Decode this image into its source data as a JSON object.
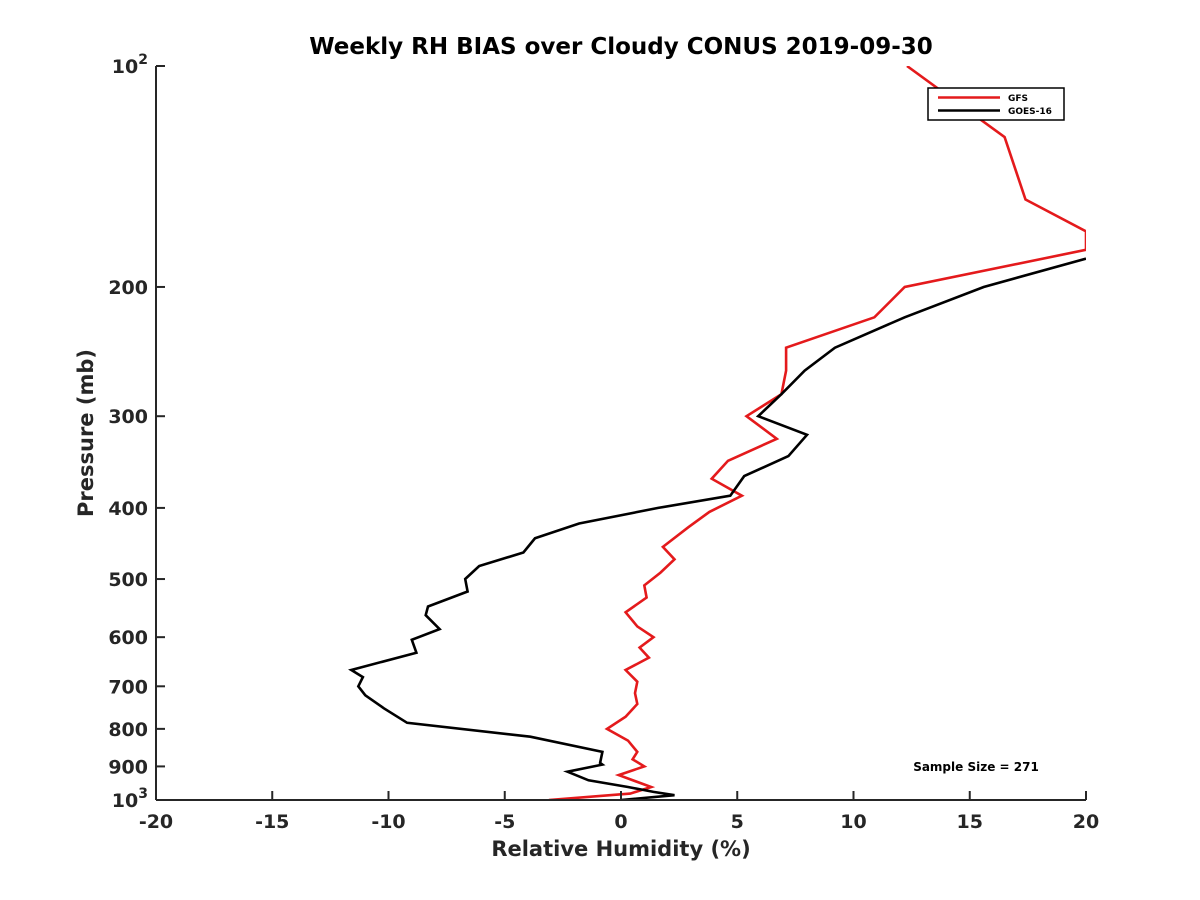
{
  "chart_data": {
    "type": "line",
    "title": "Weekly RH BIAS over Cloudy CONUS 2019-09-30",
    "xlabel": "Relative Humidity (%)",
    "ylabel": "Pressure (mb)",
    "xlim": [
      -20,
      20
    ],
    "ylim": [
      100,
      1000
    ],
    "y_scale": "log",
    "y_reversed": true,
    "grid": false,
    "legend_position": "top-right",
    "x_ticks": [
      "-20",
      "-15",
      "-10",
      "-5",
      "0",
      "5",
      "10",
      "15",
      "20"
    ],
    "y_ticks": [
      {
        "value": 100,
        "base": "10",
        "exp": "2"
      },
      {
        "value": 200,
        "label": "200"
      },
      {
        "value": 300,
        "label": "300"
      },
      {
        "value": 400,
        "label": "400"
      },
      {
        "value": 500,
        "label": "500"
      },
      {
        "value": 600,
        "label": "600"
      },
      {
        "value": 700,
        "label": "700"
      },
      {
        "value": 800,
        "label": "800"
      },
      {
        "value": 900,
        "label": "900"
      },
      {
        "value": 1000,
        "base": "10",
        "exp": "3"
      }
    ],
    "annotation": "Sample Size = 271",
    "series": [
      {
        "name": "GFS",
        "color": "#e41a1c",
        "points": [
          [
            12.3,
            100
          ],
          [
            16.5,
            125
          ],
          [
            17.4,
            152
          ],
          [
            20.0,
            168
          ],
          [
            20.0,
            178
          ],
          [
            12.2,
            200
          ],
          [
            10.9,
            220
          ],
          [
            7.1,
            242
          ],
          [
            7.1,
            260
          ],
          [
            6.9,
            280
          ],
          [
            5.4,
            300
          ],
          [
            6.7,
            322
          ],
          [
            4.6,
            345
          ],
          [
            3.9,
            365
          ],
          [
            5.2,
            385
          ],
          [
            3.8,
            405
          ],
          [
            2.9,
            425
          ],
          [
            1.8,
            452
          ],
          [
            2.3,
            470
          ],
          [
            1.7,
            490
          ],
          [
            1.0,
            510
          ],
          [
            1.1,
            530
          ],
          [
            0.2,
            555
          ],
          [
            0.7,
            580
          ],
          [
            1.4,
            600
          ],
          [
            0.8,
            620
          ],
          [
            1.2,
            640
          ],
          [
            0.2,
            665
          ],
          [
            0.7,
            690
          ],
          [
            0.6,
            715
          ],
          [
            0.7,
            740
          ],
          [
            0.2,
            770
          ],
          [
            -0.6,
            800
          ],
          [
            0.3,
            830
          ],
          [
            0.7,
            860
          ],
          [
            0.5,
            880
          ],
          [
            1.0,
            900
          ],
          [
            -0.1,
            925
          ],
          [
            1.3,
            960
          ],
          [
            0.4,
            980
          ],
          [
            -3.1,
            1000
          ]
        ]
      },
      {
        "name": "GOES-16",
        "color": "#000000",
        "points": [
          [
            20.0,
            183
          ],
          [
            15.6,
            200
          ],
          [
            12.2,
            220
          ],
          [
            9.2,
            242
          ],
          [
            7.9,
            260
          ],
          [
            6.9,
            280
          ],
          [
            5.9,
            300
          ],
          [
            8.0,
            318
          ],
          [
            7.2,
            340
          ],
          [
            5.3,
            362
          ],
          [
            4.7,
            385
          ],
          [
            1.6,
            400
          ],
          [
            -1.8,
            420
          ],
          [
            -3.7,
            440
          ],
          [
            -4.2,
            460
          ],
          [
            -6.1,
            480
          ],
          [
            -6.7,
            500
          ],
          [
            -6.6,
            520
          ],
          [
            -8.3,
            545
          ],
          [
            -8.4,
            560
          ],
          [
            -7.8,
            585
          ],
          [
            -9.0,
            605
          ],
          [
            -8.8,
            630
          ],
          [
            -11.6,
            665
          ],
          [
            -11.1,
            680
          ],
          [
            -11.3,
            700
          ],
          [
            -11.0,
            720
          ],
          [
            -10.2,
            750
          ],
          [
            -9.2,
            785
          ],
          [
            -3.9,
            820
          ],
          [
            -0.8,
            860
          ],
          [
            -0.9,
            890
          ],
          [
            -0.8,
            895
          ],
          [
            -2.3,
            915
          ],
          [
            -1.4,
            940
          ],
          [
            0.3,
            960
          ],
          [
            1.4,
            975
          ],
          [
            2.3,
            985
          ],
          [
            0.0,
            1000
          ]
        ]
      }
    ]
  }
}
